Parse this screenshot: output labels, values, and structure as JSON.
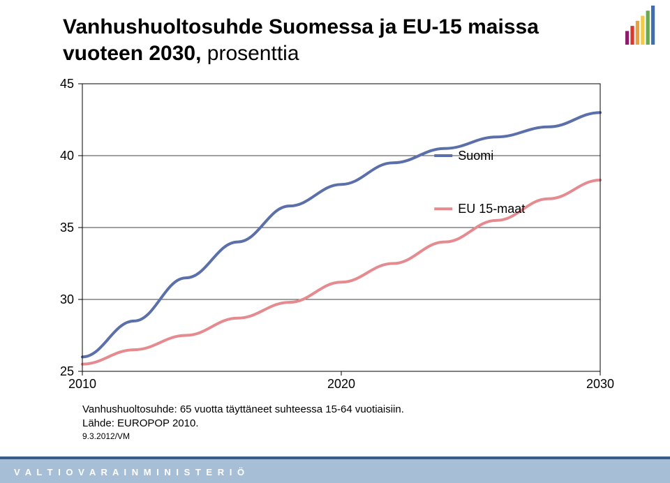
{
  "title_line1": "Vanhushuoltosuhde Suomessa ja EU-15 maissa",
  "title_line2_bold": "vuoteen 2030, ",
  "title_line2_rest": "prosenttia",
  "note": "Vanhushuoltosuhde: 65 vuotta täyttäneet suhteessa 15-64 vuotiaisiin.",
  "source": "Lähde: EUROPOP 2010.",
  "date": "9.3.2012/VM",
  "ministry": "V A L T I O V A R A I N M I N I S T E R I Ö",
  "chart": {
    "type": "line",
    "x_domain": [
      2010,
      2030
    ],
    "y_domain": [
      25,
      45
    ],
    "ytick_step": 5,
    "xticks": [
      2010,
      2020,
      2030
    ],
    "yticks": [
      25,
      30,
      35,
      40,
      45
    ],
    "y_label_fontsize": 18,
    "x_label_fontsize": 18,
    "grid_color": "#000000",
    "background_color": "#ffffff",
    "plot_border_color": "#000000",
    "line_width": 4,
    "tick_len": 6,
    "legend": {
      "x": 0.72,
      "items": [
        {
          "label": "Suomi",
          "color": "#5b6faa",
          "y": 40
        },
        {
          "label": "EU 15-maat",
          "color": "#e58a8f",
          "y": 36.3
        }
      ]
    },
    "series": [
      {
        "name": "Suomi",
        "color": "#5b6faa",
        "points": [
          [
            2010,
            26.0
          ],
          [
            2012,
            28.5
          ],
          [
            2014,
            31.5
          ],
          [
            2016,
            34.0
          ],
          [
            2018,
            36.5
          ],
          [
            2020,
            38.0
          ],
          [
            2022,
            39.5
          ],
          [
            2024,
            40.5
          ],
          [
            2026,
            41.3
          ],
          [
            2028,
            42.0
          ],
          [
            2030,
            43.0
          ]
        ]
      },
      {
        "name": "EU 15-maat",
        "color": "#e58a8f",
        "points": [
          [
            2010,
            25.5
          ],
          [
            2012,
            26.5
          ],
          [
            2014,
            27.5
          ],
          [
            2016,
            28.7
          ],
          [
            2018,
            29.8
          ],
          [
            2020,
            31.2
          ],
          [
            2022,
            32.5
          ],
          [
            2024,
            34.0
          ],
          [
            2026,
            35.5
          ],
          [
            2028,
            37.0
          ],
          [
            2030,
            38.3
          ]
        ]
      }
    ]
  },
  "logo_colors": [
    "#8a1e6a",
    "#d43a2e",
    "#e9a33a",
    "#f4c84a",
    "#6aa84f",
    "#3d6fb5"
  ]
}
